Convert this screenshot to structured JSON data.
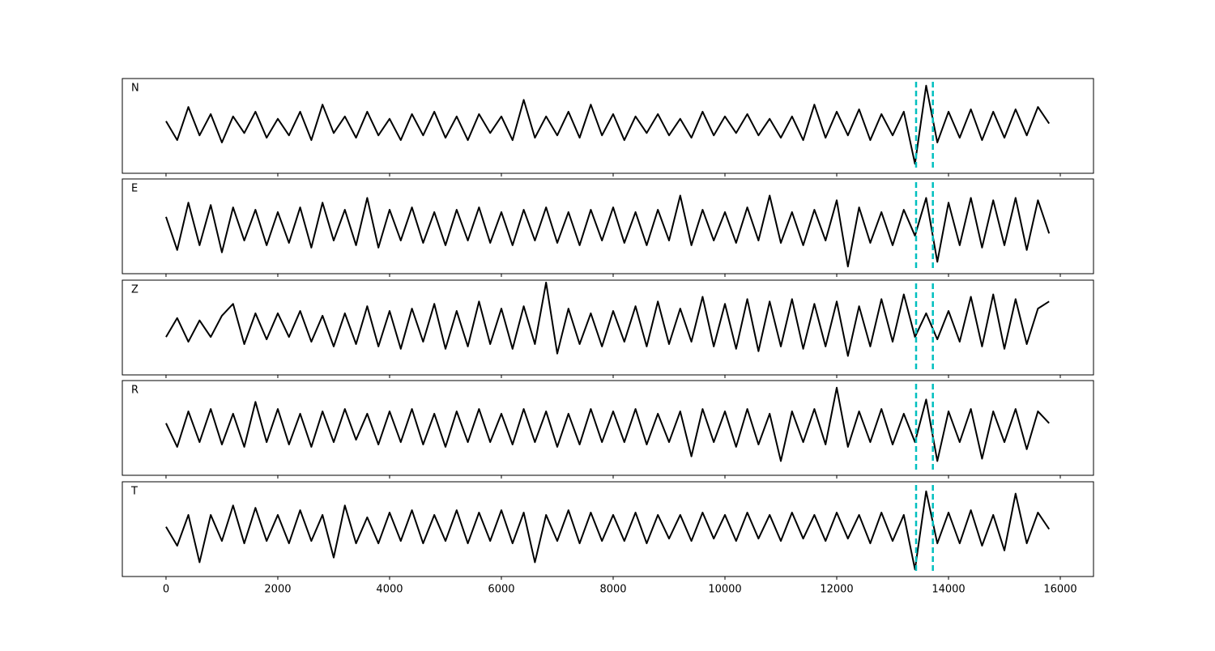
{
  "chart_data": {
    "type": "line",
    "subplots": true,
    "line_color": "#000000",
    "x": [
      0,
      200,
      400,
      600,
      800,
      1000,
      1200,
      1400,
      1600,
      1800,
      2000,
      2200,
      2400,
      2600,
      2800,
      3000,
      3200,
      3400,
      3600,
      3800,
      4000,
      4200,
      4400,
      4600,
      4800,
      5000,
      5200,
      5400,
      5600,
      5800,
      6000,
      6200,
      6400,
      6600,
      6800,
      7000,
      7200,
      7400,
      7600,
      7800,
      8000,
      8200,
      8400,
      8600,
      8800,
      9000,
      9200,
      9400,
      9600,
      9800,
      10000,
      10200,
      10400,
      10600,
      10800,
      11000,
      11200,
      11400,
      11600,
      11800,
      12000,
      12200,
      12400,
      12600,
      12800,
      13000,
      13200,
      13400,
      13600,
      13800,
      14000,
      14200,
      14400,
      14600,
      14800,
      15000,
      15200,
      15400,
      15600,
      15800
    ],
    "series": [
      {
        "name": "N",
        "values": [
          0.1,
          -0.3,
          0.4,
          -0.2,
          0.25,
          -0.35,
          0.2,
          -0.15,
          0.3,
          -0.25,
          0.15,
          -0.2,
          0.3,
          -0.3,
          0.45,
          -0.15,
          0.2,
          -0.25,
          0.3,
          -0.2,
          0.15,
          -0.3,
          0.25,
          -0.2,
          0.3,
          -0.25,
          0.2,
          -0.3,
          0.25,
          -0.15,
          0.2,
          -0.3,
          0.55,
          -0.25,
          0.2,
          -0.2,
          0.3,
          -0.25,
          0.45,
          -0.2,
          0.25,
          -0.3,
          0.2,
          -0.15,
          0.25,
          -0.2,
          0.15,
          -0.25,
          0.3,
          -0.2,
          0.2,
          -0.15,
          0.25,
          -0.2,
          0.15,
          -0.25,
          0.2,
          -0.3,
          0.45,
          -0.25,
          0.3,
          -0.2,
          0.35,
          -0.3,
          0.25,
          -0.2,
          0.3,
          -0.8,
          0.85,
          -0.35,
          0.3,
          -0.25,
          0.35,
          -0.3,
          0.3,
          -0.25,
          0.35,
          -0.2,
          0.4,
          0.05
        ]
      },
      {
        "name": "E",
        "values": [
          0.2,
          -0.5,
          0.5,
          -0.4,
          0.45,
          -0.55,
          0.4,
          -0.3,
          0.35,
          -0.4,
          0.3,
          -0.35,
          0.4,
          -0.45,
          0.5,
          -0.3,
          0.35,
          -0.4,
          0.6,
          -0.45,
          0.35,
          -0.3,
          0.4,
          -0.35,
          0.3,
          -0.4,
          0.35,
          -0.3,
          0.4,
          -0.35,
          0.3,
          -0.4,
          0.35,
          -0.3,
          0.4,
          -0.35,
          0.3,
          -0.4,
          0.35,
          -0.3,
          0.4,
          -0.35,
          0.3,
          -0.4,
          0.35,
          -0.3,
          0.65,
          -0.4,
          0.35,
          -0.3,
          0.3,
          -0.35,
          0.4,
          -0.3,
          0.65,
          -0.35,
          0.3,
          -0.4,
          0.35,
          -0.3,
          0.55,
          -0.85,
          0.4,
          -0.35,
          0.3,
          -0.4,
          0.35,
          -0.2,
          0.6,
          -0.75,
          0.5,
          -0.4,
          0.6,
          -0.45,
          0.55,
          -0.4,
          0.6,
          -0.5,
          0.55,
          -0.15
        ]
      },
      {
        "name": "Z",
        "values": [
          -0.2,
          0.2,
          -0.3,
          0.15,
          -0.2,
          0.25,
          0.5,
          -0.35,
          0.3,
          -0.25,
          0.3,
          -0.2,
          0.35,
          -0.3,
          0.25,
          -0.4,
          0.3,
          -0.35,
          0.45,
          -0.4,
          0.35,
          -0.45,
          0.4,
          -0.3,
          0.5,
          -0.45,
          0.35,
          -0.4,
          0.55,
          -0.35,
          0.4,
          -0.45,
          0.45,
          -0.35,
          0.95,
          -0.55,
          0.4,
          -0.35,
          0.3,
          -0.4,
          0.35,
          -0.3,
          0.45,
          -0.4,
          0.55,
          -0.35,
          0.4,
          -0.3,
          0.65,
          -0.4,
          0.5,
          -0.45,
          0.6,
          -0.5,
          0.55,
          -0.4,
          0.6,
          -0.45,
          0.5,
          -0.4,
          0.55,
          -0.6,
          0.45,
          -0.4,
          0.6,
          -0.3,
          0.7,
          -0.2,
          0.3,
          -0.25,
          0.35,
          -0.3,
          0.65,
          -0.4,
          0.7,
          -0.45,
          0.6,
          -0.35,
          0.4,
          0.55
        ]
      },
      {
        "name": "R",
        "values": [
          0.1,
          -0.4,
          0.35,
          -0.3,
          0.4,
          -0.35,
          0.3,
          -0.4,
          0.55,
          -0.3,
          0.4,
          -0.35,
          0.3,
          -0.4,
          0.35,
          -0.3,
          0.4,
          -0.25,
          0.3,
          -0.35,
          0.35,
          -0.3,
          0.4,
          -0.35,
          0.3,
          -0.4,
          0.35,
          -0.3,
          0.4,
          -0.3,
          0.3,
          -0.35,
          0.4,
          -0.3,
          0.35,
          -0.4,
          0.3,
          -0.35,
          0.4,
          -0.3,
          0.35,
          -0.3,
          0.4,
          -0.35,
          0.3,
          -0.3,
          0.35,
          -0.6,
          0.4,
          -0.3,
          0.35,
          -0.4,
          0.4,
          -0.35,
          0.3,
          -0.7,
          0.35,
          -0.3,
          0.4,
          -0.35,
          0.85,
          -0.4,
          0.35,
          -0.3,
          0.4,
          -0.35,
          0.3,
          -0.3,
          0.6,
          -0.7,
          0.35,
          -0.3,
          0.4,
          -0.65,
          0.35,
          -0.3,
          0.4,
          -0.45,
          0.35,
          0.1
        ]
      },
      {
        "name": "T",
        "values": [
          0.05,
          -0.35,
          0.3,
          -0.7,
          0.3,
          -0.25,
          0.5,
          -0.3,
          0.45,
          -0.25,
          0.3,
          -0.3,
          0.4,
          -0.25,
          0.3,
          -0.6,
          0.5,
          -0.3,
          0.25,
          -0.3,
          0.35,
          -0.25,
          0.4,
          -0.3,
          0.3,
          -0.25,
          0.4,
          -0.3,
          0.35,
          -0.25,
          0.4,
          -0.3,
          0.35,
          -0.7,
          0.3,
          -0.25,
          0.4,
          -0.3,
          0.35,
          -0.25,
          0.3,
          -0.25,
          0.35,
          -0.3,
          0.3,
          -0.2,
          0.3,
          -0.25,
          0.35,
          -0.2,
          0.3,
          -0.25,
          0.35,
          -0.2,
          0.3,
          -0.25,
          0.35,
          -0.2,
          0.3,
          -0.25,
          0.35,
          -0.2,
          0.3,
          -0.3,
          0.35,
          -0.25,
          0.3,
          -0.85,
          0.8,
          -0.3,
          0.35,
          -0.3,
          0.4,
          -0.35,
          0.3,
          -0.45,
          0.75,
          -0.3,
          0.35,
          0.0
        ]
      }
    ],
    "vlines": [
      13420,
      13720
    ],
    "vline_color": "#00bfbf",
    "xlim": [
      -782,
      16594
    ],
    "xticks": [
      0,
      2000,
      4000,
      6000,
      8000,
      10000,
      12000,
      14000,
      16000
    ],
    "ylim": [
      -1,
      1
    ]
  }
}
